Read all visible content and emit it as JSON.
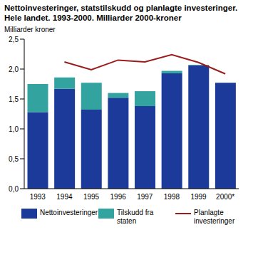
{
  "chart_data": {
    "type": "bar",
    "title": "Nettoinvesteringer, statstilskudd og planlagte investeringer. Hele landet. 1993-2000. Milliarder 2000-kroner",
    "y_label": "Milliarder kroner",
    "categories": [
      "1993",
      "1994",
      "1995",
      "1996",
      "1997",
      "1998",
      "1999",
      "2000*"
    ],
    "stacked": true,
    "grid": false,
    "legend": "bottom",
    "ylim": [
      0,
      2.5
    ],
    "yticks": [
      {
        "value": 0,
        "label": "0,0"
      },
      {
        "value": 0.5,
        "label": "0,5"
      },
      {
        "value": 1,
        "label": "1,0"
      },
      {
        "value": 1.5,
        "label": "1,5"
      },
      {
        "value": 2,
        "label": "2,0"
      },
      {
        "value": 2.5,
        "label": "2,5"
      }
    ],
    "series": [
      {
        "name": "Nettoinvesteringer",
        "type": "bar",
        "color": "#1b3a9a",
        "values": [
          1.28,
          1.67,
          1.32,
          1.52,
          1.38,
          1.93,
          2.06,
          1.77
        ]
      },
      {
        "name": "Tilskudd fra staten",
        "type": "bar",
        "color": "#33a3a0",
        "values": [
          0.47,
          0.19,
          0.45,
          0.08,
          0.25,
          0.04,
          0.01,
          0
        ]
      },
      {
        "name": "Planlagte investeringer",
        "type": "line",
        "color": "#9b1c1c",
        "values": [
          null,
          2.12,
          1.99,
          2.15,
          2.12,
          2.24,
          2.11,
          1.92
        ]
      }
    ]
  }
}
